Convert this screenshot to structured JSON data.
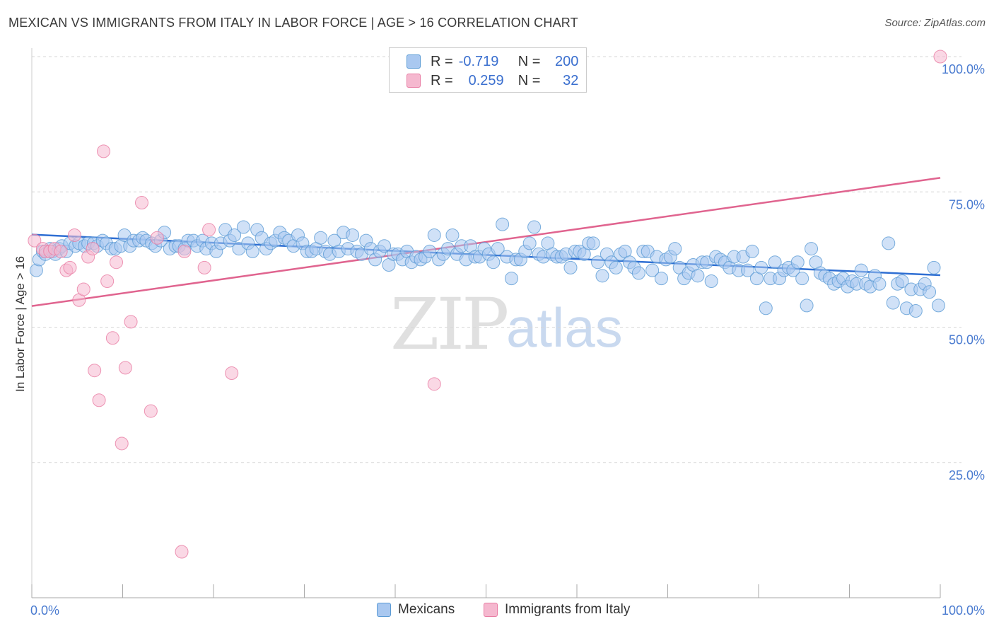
{
  "title": "MEXICAN VS IMMIGRANTS FROM ITALY IN LABOR FORCE | AGE > 16 CORRELATION CHART",
  "source": "Source: ZipAtlas.com",
  "watermark": {
    "zip": "ZIP",
    "atlas": "atlas"
  },
  "colors": {
    "blue": "#5b9bd5",
    "blue_fill": "#a9c8f0",
    "pink": "#e87ca3",
    "pink_fill": "#f5b8cf",
    "blue_line": "#2f6fd3",
    "pink_line": "#e0648f"
  },
  "legend_top": [
    {
      "r_label": "R =",
      "r_value": "-0.719",
      "n_label": "N =",
      "n_value": "200"
    },
    {
      "r_label": "R =",
      "r_value": "0.259",
      "n_label": "N =",
      "n_value": "32"
    }
  ],
  "legend_bottom": [
    "Mexicans",
    "Immigrants from Italy"
  ],
  "chart_data": {
    "type": "scatter",
    "ylabel": "In Labor Force | Age > 16",
    "xlim": [
      0,
      100
    ],
    "ylim": [
      0,
      100
    ],
    "x_tick_labels": [
      "0.0%",
      "100.0%"
    ],
    "y_ticks": [
      25,
      50,
      75,
      100
    ],
    "y_tick_labels": [
      "25.0%",
      "50.0%",
      "75.0%",
      "100.0%"
    ],
    "grid": "horizontal dashed",
    "series": [
      {
        "name": "Mexicans",
        "trend": {
          "x": [
            0,
            100
          ],
          "y": [
            67.1,
            59.6
          ]
        },
        "points": [
          [
            0.5,
            60.5
          ],
          [
            0.8,
            62.5
          ],
          [
            1.2,
            64
          ],
          [
            1.5,
            63.5
          ],
          [
            2,
            64.5
          ],
          [
            2.3,
            64
          ],
          [
            2.6,
            63.5
          ],
          [
            3,
            64.5
          ],
          [
            3.3,
            65
          ],
          [
            3.8,
            64
          ],
          [
            4.2,
            65.5
          ],
          [
            4.8,
            65
          ],
          [
            5.2,
            65.5
          ],
          [
            5.8,
            65
          ],
          [
            6.2,
            65.5
          ],
          [
            6.8,
            65.5
          ],
          [
            7.2,
            65
          ],
          [
            7.8,
            66
          ],
          [
            8.2,
            65.5
          ],
          [
            8.8,
            64.5
          ],
          [
            9.2,
            64.5
          ],
          [
            9.8,
            65
          ],
          [
            10.2,
            67
          ],
          [
            10.8,
            65
          ],
          [
            11.2,
            66
          ],
          [
            11.8,
            66
          ],
          [
            12.2,
            66.5
          ],
          [
            12.6,
            66
          ],
          [
            13.2,
            65.5
          ],
          [
            13.6,
            65
          ],
          [
            14.2,
            66
          ],
          [
            14.6,
            67.5
          ],
          [
            15.2,
            64.5
          ],
          [
            15.8,
            65
          ],
          [
            16.2,
            65
          ],
          [
            16.8,
            64.5
          ],
          [
            17.2,
            66
          ],
          [
            17.8,
            66
          ],
          [
            18.2,
            65
          ],
          [
            18.8,
            66
          ],
          [
            19.2,
            64.5
          ],
          [
            19.8,
            65.5
          ],
          [
            20.3,
            64
          ],
          [
            20.8,
            65.5
          ],
          [
            21.3,
            68
          ],
          [
            21.8,
            66
          ],
          [
            22.3,
            67
          ],
          [
            22.8,
            64.5
          ],
          [
            23.3,
            68.5
          ],
          [
            23.8,
            65.5
          ],
          [
            24.3,
            64
          ],
          [
            24.8,
            68
          ],
          [
            25.3,
            66.5
          ],
          [
            25.8,
            64.5
          ],
          [
            26.3,
            65.5
          ],
          [
            26.8,
            66
          ],
          [
            27.3,
            67.5
          ],
          [
            27.8,
            66.5
          ],
          [
            28.3,
            66
          ],
          [
            28.8,
            65
          ],
          [
            29.3,
            67
          ],
          [
            29.8,
            65.5
          ],
          [
            30.3,
            64
          ],
          [
            30.8,
            64
          ],
          [
            31.3,
            64.5
          ],
          [
            31.8,
            66.5
          ],
          [
            32.3,
            64
          ],
          [
            32.8,
            63.5
          ],
          [
            33.3,
            66
          ],
          [
            33.8,
            64
          ],
          [
            34.3,
            67.5
          ],
          [
            34.8,
            64.5
          ],
          [
            35.3,
            67
          ],
          [
            35.8,
            64
          ],
          [
            36.3,
            63.5
          ],
          [
            36.8,
            66
          ],
          [
            37.3,
            64.5
          ],
          [
            37.8,
            62.5
          ],
          [
            38.3,
            64
          ],
          [
            38.8,
            65
          ],
          [
            39.3,
            61.5
          ],
          [
            39.8,
            63.5
          ],
          [
            40.3,
            63.5
          ],
          [
            40.8,
            62.5
          ],
          [
            41.3,
            64
          ],
          [
            41.8,
            62
          ],
          [
            42.3,
            63
          ],
          [
            42.8,
            62.5
          ],
          [
            43.3,
            63
          ],
          [
            43.8,
            64
          ],
          [
            44.3,
            67
          ],
          [
            44.8,
            62.5
          ],
          [
            45.3,
            63.5
          ],
          [
            45.8,
            64.5
          ],
          [
            46.3,
            67
          ],
          [
            46.8,
            63.5
          ],
          [
            47.3,
            65
          ],
          [
            47.8,
            62.5
          ],
          [
            48.3,
            65
          ],
          [
            48.8,
            63
          ],
          [
            49.3,
            63
          ],
          [
            49.8,
            64.5
          ],
          [
            50.3,
            63.5
          ],
          [
            50.8,
            62
          ],
          [
            51.3,
            64.5
          ],
          [
            51.8,
            69
          ],
          [
            52.3,
            63
          ],
          [
            52.8,
            59
          ],
          [
            53.3,
            62.5
          ],
          [
            53.8,
            62.5
          ],
          [
            54.3,
            64
          ],
          [
            54.8,
            65.5
          ],
          [
            55.3,
            68.5
          ],
          [
            55.8,
            63.5
          ],
          [
            56.3,
            63
          ],
          [
            56.8,
            65.5
          ],
          [
            57.3,
            63.5
          ],
          [
            57.8,
            63
          ],
          [
            58.3,
            63
          ],
          [
            58.8,
            63.5
          ],
          [
            59.3,
            61
          ],
          [
            59.8,
            64
          ],
          [
            60.3,
            64
          ],
          [
            60.8,
            63.5
          ],
          [
            61.3,
            65.5
          ],
          [
            61.8,
            65.5
          ],
          [
            62.3,
            62
          ],
          [
            62.8,
            59.5
          ],
          [
            63.3,
            63.5
          ],
          [
            63.8,
            62
          ],
          [
            64.3,
            61
          ],
          [
            64.8,
            63.5
          ],
          [
            65.3,
            64
          ],
          [
            65.8,
            62
          ],
          [
            66.3,
            61
          ],
          [
            66.8,
            60
          ],
          [
            67.3,
            64
          ],
          [
            67.8,
            64
          ],
          [
            68.3,
            60.5
          ],
          [
            68.8,
            63
          ],
          [
            69.3,
            59
          ],
          [
            69.8,
            62.5
          ],
          [
            70.3,
            63
          ],
          [
            70.8,
            64.5
          ],
          [
            71.3,
            61
          ],
          [
            71.8,
            59
          ],
          [
            72.3,
            60
          ],
          [
            72.8,
            61.5
          ],
          [
            73.3,
            59.5
          ],
          [
            73.8,
            62
          ],
          [
            74.3,
            62
          ],
          [
            74.8,
            58.5
          ],
          [
            75.3,
            63
          ],
          [
            75.8,
            62.5
          ],
          [
            76.3,
            62
          ],
          [
            76.8,
            61
          ],
          [
            77.3,
            63
          ],
          [
            77.8,
            60.5
          ],
          [
            78.3,
            63
          ],
          [
            78.8,
            60.5
          ],
          [
            79.3,
            64
          ],
          [
            79.8,
            59
          ],
          [
            80.3,
            61
          ],
          [
            80.8,
            53.5
          ],
          [
            81.3,
            59
          ],
          [
            81.8,
            62
          ],
          [
            82.3,
            59
          ],
          [
            82.8,
            60.5
          ],
          [
            83.3,
            61
          ],
          [
            83.8,
            60.5
          ],
          [
            84.3,
            62
          ],
          [
            84.8,
            59
          ],
          [
            85.3,
            54
          ],
          [
            85.8,
            64.5
          ],
          [
            86.3,
            62
          ],
          [
            86.8,
            60
          ],
          [
            87.3,
            59.5
          ],
          [
            87.8,
            59
          ],
          [
            88.3,
            58
          ],
          [
            88.8,
            58.5
          ],
          [
            89.3,
            59
          ],
          [
            89.8,
            57.5
          ],
          [
            90.3,
            58.5
          ],
          [
            90.8,
            58
          ],
          [
            91.3,
            60.5
          ],
          [
            91.8,
            58
          ],
          [
            92.3,
            57.5
          ],
          [
            92.8,
            59.5
          ],
          [
            93.3,
            58
          ],
          [
            94.3,
            65.5
          ],
          [
            94.8,
            54.5
          ],
          [
            95.3,
            58
          ],
          [
            95.8,
            58.5
          ],
          [
            96.3,
            53.5
          ],
          [
            96.8,
            57
          ],
          [
            97.3,
            53
          ],
          [
            97.8,
            57
          ],
          [
            98.3,
            58
          ],
          [
            98.8,
            56.5
          ],
          [
            99.3,
            61
          ],
          [
            99.8,
            54
          ]
        ]
      },
      {
        "name": "Immigrants from Italy",
        "trend": {
          "x": [
            0,
            100
          ],
          "y": [
            53.9,
            77.6
          ]
        },
        "points": [
          [
            0.3,
            66
          ],
          [
            1.2,
            64.5
          ],
          [
            1.5,
            64
          ],
          [
            2,
            64
          ],
          [
            2.5,
            64.5
          ],
          [
            3.2,
            64
          ],
          [
            3.8,
            60.5
          ],
          [
            4.2,
            61
          ],
          [
            4.7,
            67
          ],
          [
            5.2,
            55
          ],
          [
            5.7,
            57
          ],
          [
            6.2,
            63
          ],
          [
            6.7,
            64.5
          ],
          [
            6.9,
            42
          ],
          [
            7.4,
            36.5
          ],
          [
            7.9,
            82.5
          ],
          [
            8.3,
            58.5
          ],
          [
            8.9,
            48
          ],
          [
            9.3,
            62
          ],
          [
            9.9,
            28.5
          ],
          [
            10.3,
            42.5
          ],
          [
            10.9,
            51
          ],
          [
            12.1,
            73
          ],
          [
            13.1,
            34.5
          ],
          [
            13.8,
            66.5
          ],
          [
            16.5,
            8.5
          ],
          [
            16.8,
            64
          ],
          [
            19,
            61
          ],
          [
            19.5,
            68
          ],
          [
            22,
            41.5
          ],
          [
            44.3,
            39.5
          ],
          [
            100,
            100
          ]
        ]
      }
    ]
  }
}
